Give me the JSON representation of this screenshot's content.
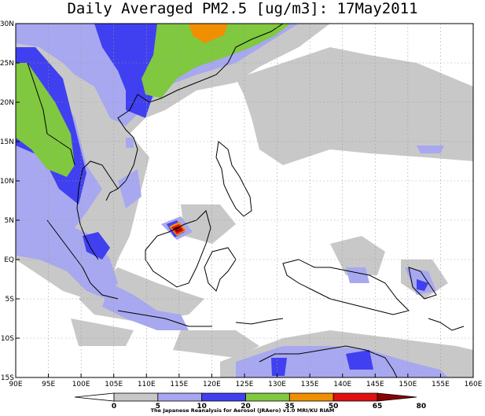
{
  "title": "Daily Averaged PM2.5 [ug/m3]: 17May2011",
  "credit": "The Japanese Reanalysis for Aerosol (JRAero) v1.0 MRI/KU RIAM",
  "x_axis_labels": [
    "90E",
    "95E",
    "100E",
    "105E",
    "110E",
    "115E",
    "120E",
    "125E",
    "130E",
    "135E",
    "140E",
    "145E",
    "150E",
    "155E",
    "160E"
  ],
  "y_axis_labels": [
    "30N",
    "25N",
    "20N",
    "15N",
    "10N",
    "5N",
    "EQ",
    "5S",
    "10S",
    "15S"
  ],
  "colorbar": {
    "tick_labels": [
      "0",
      "5",
      "10",
      "20",
      "35",
      "50",
      "65",
      "80"
    ],
    "colors": [
      "#ffffff",
      "#c8c8c8",
      "#a8a8f0",
      "#4040f0",
      "#80c840",
      "#f09000",
      "#e01010",
      "#8b0000"
    ]
  },
  "colors": {
    "level_5_10": "#c8c8c8",
    "level_10_20": "#a8a8f0",
    "level_20_35": "#4040f0",
    "level_35_50": "#80c840",
    "level_50_65": "#f09000",
    "level_65_80": "#e01010",
    "level_over_80": "#8b0000",
    "coastline": "#000000",
    "grid": "#999999"
  }
}
